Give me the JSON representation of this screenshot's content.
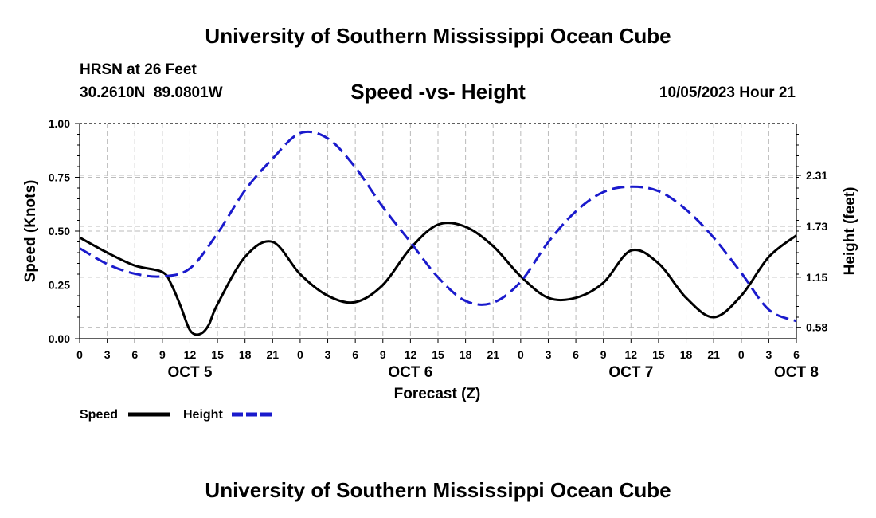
{
  "header": {
    "title": "University of Southern Mississippi Ocean Cube",
    "station": "HRSN at 26 Feet",
    "coordinates": "30.2610N  89.0801W",
    "subtitle": "Speed -vs- Height",
    "datetime": "10/05/2023 Hour 21"
  },
  "footer": {
    "title": "University of Southern Mississippi Ocean Cube"
  },
  "chart_data": {
    "type": "line",
    "title": "Speed -vs- Height",
    "xlabel": "Forecast (Z)",
    "ylabel": "Speed (Knots)",
    "y2label": "Height (feet)",
    "xlim": [
      0,
      78
    ],
    "ylim": [
      0,
      1.0
    ],
    "y2lim": [
      0.45,
      2.9
    ],
    "x_tick_labels": [
      "0",
      "3",
      "6",
      "9",
      "12",
      "15",
      "18",
      "21",
      "0",
      "3",
      "6",
      "9",
      "12",
      "15",
      "18",
      "21",
      "0",
      "3",
      "6",
      "9",
      "12",
      "15",
      "18",
      "21",
      "0",
      "3",
      "6"
    ],
    "y_ticks": [
      "1.00",
      "0.75",
      "0.50",
      "0.25",
      "0.00"
    ],
    "y_tick_values": [
      1.0,
      0.75,
      0.5,
      0.25,
      0.0
    ],
    "y2_ticks": [
      "2.31",
      "1.73",
      "1.15",
      "0.58"
    ],
    "y2_tick_values": [
      2.31,
      1.73,
      1.15,
      0.58
    ],
    "date_labels": [
      {
        "label": "OCT 5",
        "x": 12
      },
      {
        "label": "OCT 6",
        "x": 36
      },
      {
        "label": "OCT 7",
        "x": 60
      },
      {
        "label": "OCT 8",
        "x": 78
      }
    ],
    "grid": true,
    "legend": [
      {
        "name": "Speed",
        "color": "#000000",
        "dash": "solid"
      },
      {
        "name": "Height",
        "color": "#1a1acc",
        "dash": "dashed"
      }
    ],
    "series": [
      {
        "name": "Speed",
        "axis": "left",
        "color": "#000000",
        "x": [
          0,
          3,
          6,
          9,
          10,
          11,
          12,
          13,
          14,
          15,
          18,
          21,
          24,
          27,
          30,
          33,
          36,
          39,
          42,
          45,
          48,
          51,
          54,
          57,
          60,
          63,
          66,
          69,
          72,
          75,
          78
        ],
        "y": [
          0.47,
          0.4,
          0.34,
          0.31,
          0.25,
          0.15,
          0.04,
          0.02,
          0.06,
          0.16,
          0.38,
          0.45,
          0.3,
          0.2,
          0.17,
          0.25,
          0.42,
          0.53,
          0.52,
          0.43,
          0.29,
          0.19,
          0.19,
          0.26,
          0.41,
          0.35,
          0.19,
          0.1,
          0.2,
          0.38,
          0.48
        ]
      },
      {
        "name": "Height",
        "axis": "right",
        "color": "#1a1acc",
        "x": [
          0,
          3,
          6,
          9,
          12,
          15,
          18,
          21,
          24,
          27,
          30,
          33,
          36,
          39,
          42,
          45,
          48,
          51,
          54,
          57,
          60,
          63,
          66,
          69,
          72,
          75,
          78
        ],
        "y": [
          1.48,
          1.3,
          1.19,
          1.16,
          1.25,
          1.65,
          2.14,
          2.5,
          2.79,
          2.73,
          2.4,
          1.95,
          1.55,
          1.15,
          0.88,
          0.86,
          1.1,
          1.55,
          1.9,
          2.12,
          2.18,
          2.13,
          1.92,
          1.6,
          1.2,
          0.78,
          0.65
        ]
      }
    ]
  }
}
